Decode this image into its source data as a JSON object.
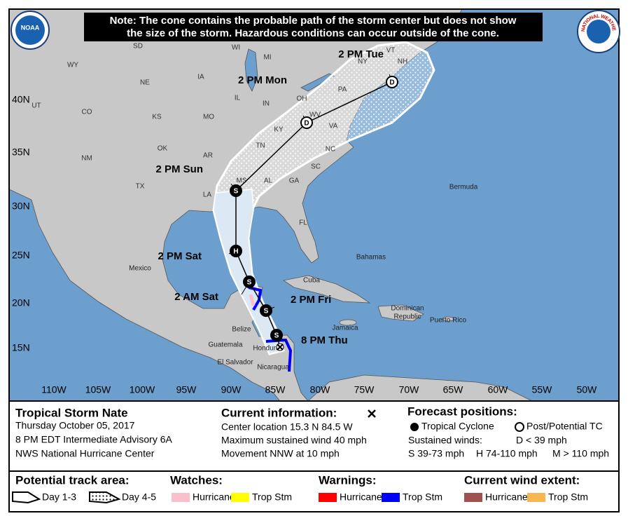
{
  "note": [
    "Note: The cone contains the probable path of the storm center but does not show",
    "the size of the storm. Hazardous conditions can occur outside of the cone."
  ],
  "logos": {
    "noaa": "NOAA",
    "nws": "NATIONAL WEATHER SERVICE"
  },
  "map": {
    "longitudes": [
      "110W",
      "105W",
      "100W",
      "95W",
      "90W",
      "85W",
      "80W",
      "75W",
      "70W",
      "65W",
      "60W",
      "55W",
      "50W"
    ],
    "latitudes": [
      "40N",
      "35N",
      "30N",
      "25N",
      "20N",
      "15N"
    ],
    "states": [
      "SD",
      "WY",
      "NE",
      "IA",
      "WI",
      "MI",
      "UT",
      "CO",
      "KS",
      "MO",
      "IL",
      "IN",
      "OH",
      "PA",
      "NY",
      "VT",
      "NH",
      "OK",
      "AR",
      "NM",
      "TN",
      "KY",
      "WV",
      "VA",
      "NC",
      "SC",
      "TX",
      "LA",
      "MS",
      "AL",
      "GA",
      "FL"
    ],
    "places": [
      "Mexico",
      "Cuba",
      "Bahamas",
      "Bermuda",
      "Jamaica",
      "Dominican",
      "Republic",
      "Puerto Rico",
      "Belize",
      "Guatemala",
      "Honduras",
      "El Salvador",
      "Nicaragua"
    ],
    "forecast_points": [
      {
        "time": "8 PM Thu",
        "symbol": "S"
      },
      {
        "time": "2 PM Fri",
        "symbol": "S"
      },
      {
        "time": "2 AM Sat",
        "symbol": "S"
      },
      {
        "time": "2 PM Sat",
        "symbol": "H"
      },
      {
        "time": "2 PM Sun",
        "symbol": "S"
      },
      {
        "time": "2 PM Mon",
        "symbol": "D"
      },
      {
        "time": "2 PM Tue",
        "symbol": "D"
      }
    ]
  },
  "storm": {
    "name": "Tropical Storm Nate",
    "date": "Thursday October 05, 2017",
    "advisory": "8 PM EDT Intermediate Advisory 6A",
    "source": "NWS National Hurricane Center"
  },
  "current": {
    "title": "Current information:",
    "lines": [
      "Center location 15.3 N 84.5 W",
      "Maximum sustained wind 40 mph",
      "Movement NNW at 10 mph"
    ]
  },
  "forecast": {
    "title": "Forecast positions:",
    "tropical": "Tropical Cyclone",
    "post": "Post/Potential TC",
    "winds_title": "Sustained winds:",
    "d": "D < 39 mph",
    "s": "S 39-73 mph",
    "h": "H 74-110 mph",
    "m": "M > 110 mph"
  },
  "track_area": {
    "title": "Potential track area:",
    "day13": "Day 1-3",
    "day45": "Day 4-5"
  },
  "watches": {
    "title": "Watches:",
    "items": [
      {
        "label": "Hurricane",
        "color": "#f9c0cb"
      },
      {
        "label": "Trop Stm",
        "color": "#ffff00"
      }
    ]
  },
  "warnings": {
    "title": "Warnings:",
    "items": [
      {
        "label": "Hurricane",
        "color": "#ff0000"
      },
      {
        "label": "Trop Stm",
        "color": "#0000ff"
      }
    ]
  },
  "wind_extent": {
    "title": "Current wind extent:",
    "items": [
      {
        "label": "Hurricane",
        "color": "#a0504f"
      },
      {
        "label": "Trop Stm",
        "color": "#f7b64f"
      }
    ]
  }
}
